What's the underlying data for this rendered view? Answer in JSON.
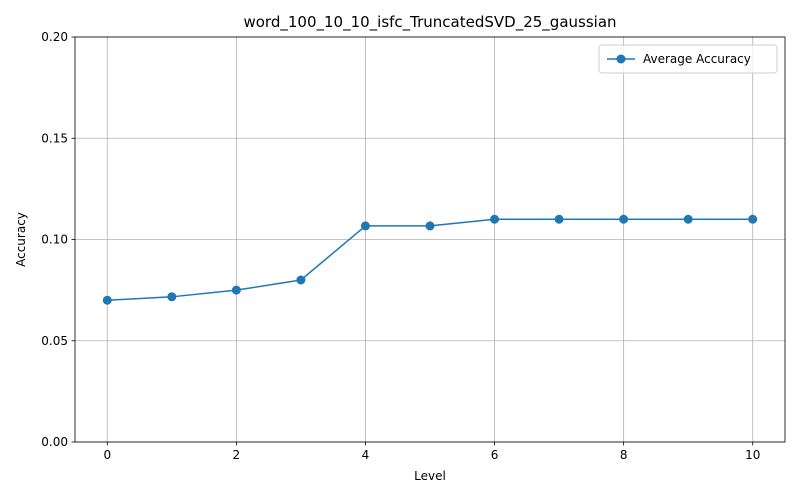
{
  "chart_data": {
    "type": "line",
    "title": "word_100_10_10_isfc_TruncatedSVD_25_gaussian",
    "xlabel": "Level",
    "ylabel": "Accuracy",
    "xlim": [
      -0.5,
      10.5
    ],
    "ylim": [
      0.0,
      0.2
    ],
    "xticks": [
      0,
      2,
      4,
      6,
      8,
      10
    ],
    "xtick_labels": [
      "0",
      "2",
      "4",
      "6",
      "8",
      "10"
    ],
    "yticks": [
      0.0,
      0.05,
      0.1,
      0.15,
      0.2
    ],
    "ytick_labels": [
      "0.00",
      "0.05",
      "0.10",
      "0.15",
      "0.20"
    ],
    "grid": true,
    "legend_position": "top-right",
    "series": [
      {
        "name": "Average Accuracy",
        "color": "#1f77b4",
        "marker": "circle",
        "x": [
          0,
          1,
          2,
          3,
          4,
          5,
          6,
          7,
          8,
          9,
          10
        ],
        "y": [
          0.07,
          0.0717,
          0.075,
          0.08,
          0.1067,
          0.1067,
          0.11,
          0.11,
          0.11,
          0.11,
          0.11
        ]
      }
    ]
  }
}
